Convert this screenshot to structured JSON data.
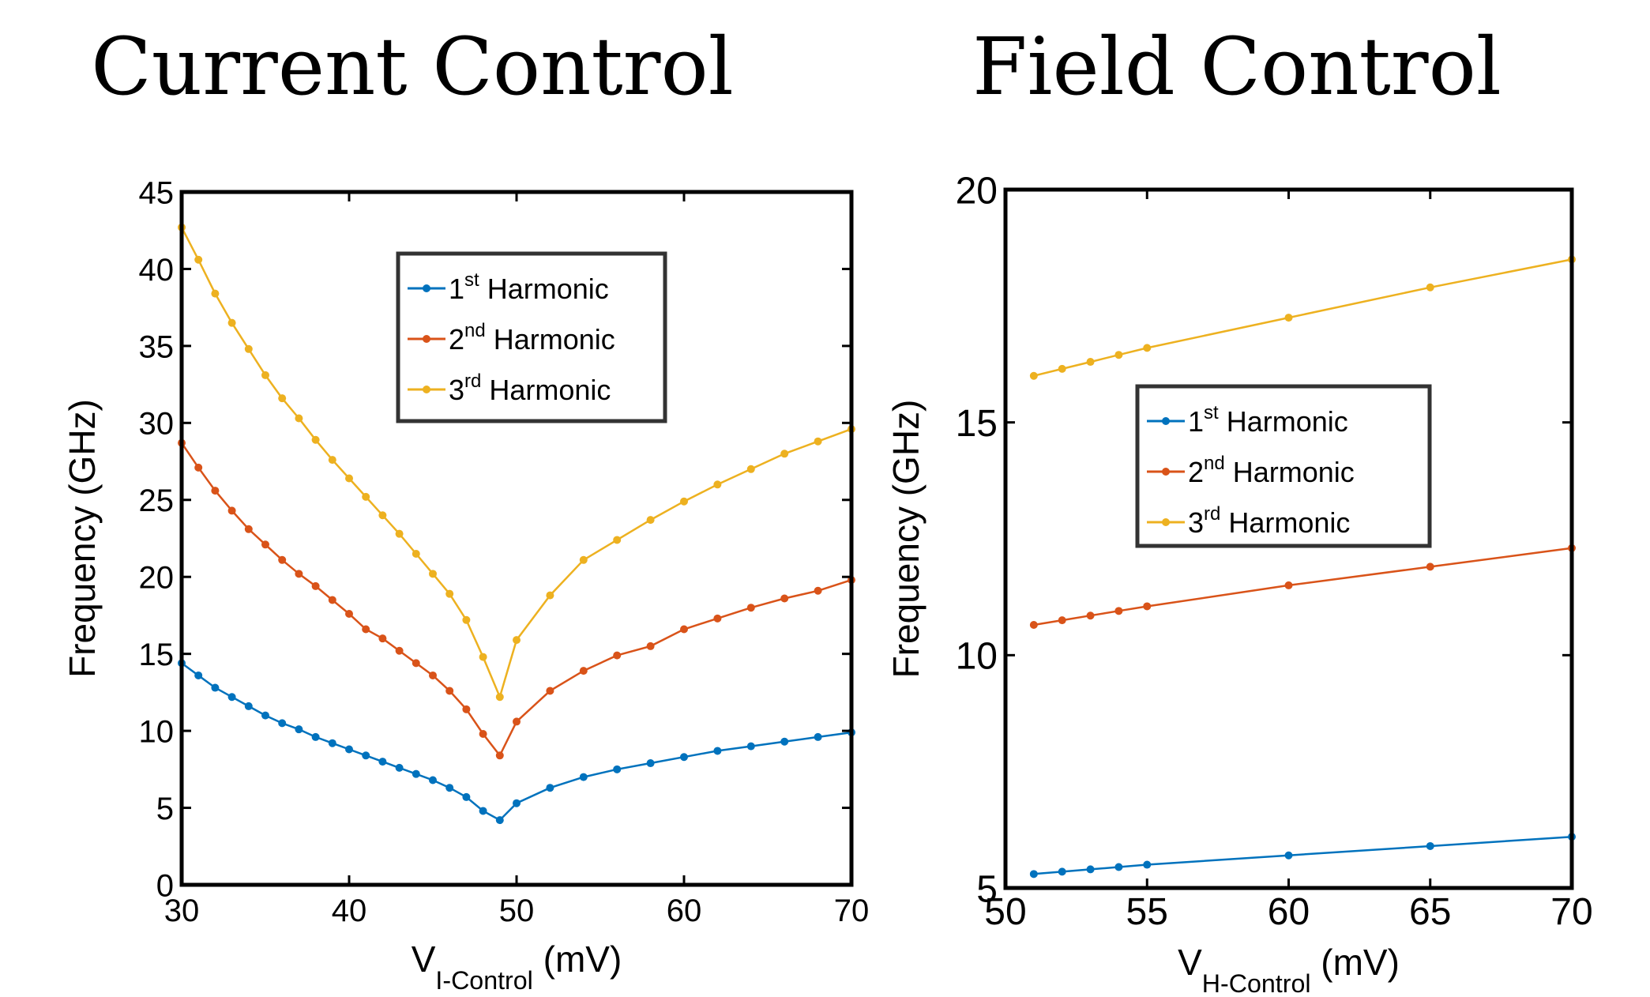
{
  "chart_data": [
    {
      "type": "line",
      "title": "Current Control",
      "xlabel": {
        "main": "V",
        "sub": "I-Control",
        "unit": "(mV)"
      },
      "ylabel": "Frequency (GHz)",
      "xlim": [
        30,
        70
      ],
      "ylim": [
        0,
        45
      ],
      "xticks": [
        30,
        40,
        50,
        60,
        70
      ],
      "yticks": [
        0,
        5,
        10,
        15,
        20,
        25,
        30,
        35,
        40,
        45
      ],
      "grid": false,
      "legend_position": "top-center",
      "x": [
        30,
        31,
        32,
        33,
        34,
        35,
        36,
        37,
        38,
        39,
        40,
        41,
        42,
        43,
        44,
        45,
        46,
        47,
        48,
        49,
        50,
        52,
        54,
        56,
        58,
        60,
        62,
        64,
        66,
        68,
        70
      ],
      "series": [
        {
          "name": "1st Harmonic",
          "base": "1",
          "sup": "st",
          "rest": " Harmonic",
          "color": "#0072BD",
          "values": [
            14.4,
            13.6,
            12.8,
            12.2,
            11.6,
            11.0,
            10.5,
            10.1,
            9.6,
            9.2,
            8.8,
            8.4,
            8.0,
            7.6,
            7.2,
            6.8,
            6.3,
            5.7,
            4.8,
            4.2,
            5.3,
            6.3,
            7.0,
            7.5,
            7.9,
            8.3,
            8.7,
            9.0,
            9.3,
            9.6,
            9.9
          ]
        },
        {
          "name": "2nd Harmonic",
          "base": "2",
          "sup": "nd",
          "rest": " Harmonic",
          "color": "#D95319",
          "values": [
            28.7,
            27.1,
            25.6,
            24.3,
            23.1,
            22.1,
            21.1,
            20.2,
            19.4,
            18.5,
            17.6,
            16.6,
            16.0,
            15.2,
            14.4,
            13.6,
            12.6,
            11.4,
            9.8,
            8.4,
            10.6,
            12.6,
            13.9,
            14.9,
            15.5,
            16.6,
            17.3,
            18.0,
            18.6,
            19.1,
            19.8
          ]
        },
        {
          "name": "3rd Harmonic",
          "base": "3",
          "sup": "rd",
          "rest": " Harmonic",
          "color": "#EDB120",
          "values": [
            42.7,
            40.6,
            38.4,
            36.5,
            34.8,
            33.1,
            31.6,
            30.3,
            28.9,
            27.6,
            26.4,
            25.2,
            24.0,
            22.8,
            21.5,
            20.2,
            18.9,
            17.2,
            14.8,
            12.2,
            15.9,
            18.8,
            21.1,
            22.4,
            23.7,
            24.9,
            26.0,
            27.0,
            28.0,
            28.8,
            29.6
          ]
        }
      ]
    },
    {
      "type": "line",
      "title": "Field Control",
      "xlabel": {
        "main": "V",
        "sub": "H-Control",
        "unit": "(mV)"
      },
      "ylabel": "Frequency (GHz)",
      "xlim": [
        50,
        70
      ],
      "ylim": [
        5,
        20
      ],
      "xticks": [
        50,
        55,
        60,
        65,
        70
      ],
      "yticks": [
        5,
        10,
        15,
        20
      ],
      "grid": false,
      "legend_position": "center-left",
      "x": [
        51,
        52,
        53,
        54,
        55,
        60,
        65,
        70
      ],
      "series": [
        {
          "name": "1st Harmonic",
          "base": "1",
          "sup": "st",
          "rest": " Harmonic",
          "color": "#0072BD",
          "values": [
            5.3,
            5.35,
            5.4,
            5.45,
            5.5,
            5.7,
            5.9,
            6.1
          ]
        },
        {
          "name": "2nd Harmonic",
          "base": "2",
          "sup": "nd",
          "rest": " Harmonic",
          "color": "#D95319",
          "values": [
            10.65,
            10.75,
            10.85,
            10.95,
            11.05,
            11.5,
            11.9,
            12.3
          ]
        },
        {
          "name": "3rd Harmonic",
          "base": "3",
          "sup": "rd",
          "rest": " Harmonic",
          "color": "#EDB120",
          "values": [
            16.0,
            16.15,
            16.3,
            16.45,
            16.6,
            17.25,
            17.9,
            18.5
          ]
        }
      ]
    }
  ]
}
